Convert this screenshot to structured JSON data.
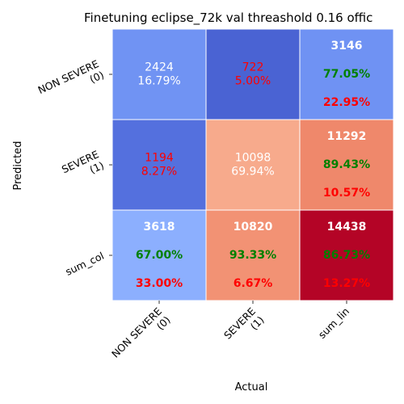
{
  "chart_data": {
    "type": "heatmap",
    "title": "Finetuning eclipse_72k val threashold 0.16 offic",
    "xlabel": "Actual",
    "ylabel": "Predicted",
    "x_ticks": [
      [
        "NON SEVERE",
        "(0)"
      ],
      [
        "SEVERE",
        "(1)"
      ],
      [
        "sum_lin"
      ]
    ],
    "y_ticks": [
      [
        "NON SEVERE",
        "(0)"
      ],
      [
        "SEVERE",
        "(1)"
      ],
      [
        "sum_col"
      ]
    ],
    "colormap": "coolwarm",
    "cells": [
      [
        {
          "fill": "#7093f3",
          "lines": [
            {
              "text": "2424",
              "color": "#ffffff",
              "bold": false
            },
            {
              "text": "16.79%",
              "color": "#ffffff",
              "bold": false
            }
          ]
        },
        {
          "fill": "#4a63d3",
          "lines": [
            {
              "text": "722",
              "color": "#ff0000",
              "bold": false
            },
            {
              "text": "5.00%",
              "color": "#ff0000",
              "bold": false
            }
          ]
        },
        {
          "fill": "#6f92f3",
          "lines": [
            {
              "text": "3146",
              "color": "#ffffff",
              "bold": true
            },
            {
              "text": "77.05%",
              "color": "#008000",
              "bold": true
            },
            {
              "text": "22.95%",
              "color": "#ff0000",
              "bold": true
            }
          ]
        }
      ],
      [
        {
          "fill": "#5470de",
          "lines": [
            {
              "text": "1194",
              "color": "#ff0000",
              "bold": false
            },
            {
              "text": "8.27%",
              "color": "#ff0000",
              "bold": false
            }
          ]
        },
        {
          "fill": "#f7aa8c",
          "lines": [
            {
              "text": "10098",
              "color": "#ffffff",
              "bold": false
            },
            {
              "text": "69.94%",
              "color": "#ffffff",
              "bold": false
            }
          ]
        },
        {
          "fill": "#ef886b",
          "lines": [
            {
              "text": "11292",
              "color": "#ffffff",
              "bold": true
            },
            {
              "text": "89.43%",
              "color": "#008000",
              "bold": true
            },
            {
              "text": "10.57%",
              "color": "#ff0000",
              "bold": true
            }
          ]
        }
      ],
      [
        {
          "fill": "#8caffe",
          "lines": [
            {
              "text": "3618",
              "color": "#ffffff",
              "bold": true
            },
            {
              "text": "67.00%",
              "color": "#008000",
              "bold": true
            },
            {
              "text": "33.00%",
              "color": "#ff0000",
              "bold": true
            }
          ]
        },
        {
          "fill": "#f29274",
          "lines": [
            {
              "text": "10820",
              "color": "#ffffff",
              "bold": true
            },
            {
              "text": "93.33%",
              "color": "#008000",
              "bold": true
            },
            {
              "text": "6.67%",
              "color": "#ff0000",
              "bold": true
            }
          ]
        },
        {
          "fill": "#b40426",
          "lines": [
            {
              "text": "14438",
              "color": "#ffffff",
              "bold": true
            },
            {
              "text": "86.73%",
              "color": "#008000",
              "bold": true
            },
            {
              "text": "13.27%",
              "color": "#ff0000",
              "bold": true
            }
          ]
        }
      ]
    ]
  }
}
